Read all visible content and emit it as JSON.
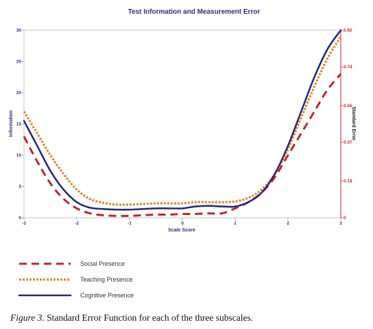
{
  "chart_data": {
    "type": "line",
    "title": "Test Information and Measurement Error",
    "xlabel": "Scale Score",
    "ylabel": "Information",
    "y2label": "Standard Error",
    "xlim": [
      -3,
      3
    ],
    "ylim": [
      0,
      30
    ],
    "y2lim": [
      0,
      0.92
    ],
    "x_ticks": [
      "-3",
      "-2",
      "-1",
      "0",
      "1",
      "2",
      "3"
    ],
    "y_ticks": [
      "0",
      "5",
      "10",
      "15",
      "20",
      "25",
      "30"
    ],
    "y2_ticks": [
      "0",
      "0.18",
      "0.37",
      "0.55",
      "0.74",
      "0.92"
    ],
    "series": [
      {
        "name": "Social Presence",
        "color": "#c0252b",
        "style": "dashed",
        "x": [
          -3,
          -2.75,
          -2.5,
          -2.25,
          -2,
          -1.75,
          -1.5,
          -1.25,
          -1,
          -0.75,
          -0.5,
          -0.25,
          0,
          0.25,
          0.5,
          0.75,
          1,
          1.25,
          1.5,
          1.75,
          2,
          2.25,
          2.5,
          2.75,
          3
        ],
        "values": [
          13,
          9,
          5.5,
          3,
          1.5,
          0.7,
          0.4,
          0.3,
          0.3,
          0.4,
          0.5,
          0.5,
          0.6,
          0.6,
          0.7,
          0.7,
          1.5,
          2.5,
          4,
          6.5,
          10,
          13.5,
          17,
          20.5,
          23
        ]
      },
      {
        "name": "Teaching Presence",
        "color": "#d98a2e",
        "style": "dotted",
        "x": [
          -3,
          -2.75,
          -2.5,
          -2.25,
          -2,
          -1.75,
          -1.5,
          -1.25,
          -1,
          -0.75,
          -0.5,
          -0.25,
          0,
          0.25,
          0.5,
          0.75,
          1,
          1.25,
          1.5,
          1.75,
          2,
          2.25,
          2.5,
          2.75,
          3
        ],
        "values": [
          17,
          13.5,
          10,
          7,
          4.5,
          3,
          2.4,
          2.1,
          2.1,
          2.2,
          2.3,
          2.3,
          2.3,
          2.5,
          2.5,
          2.5,
          2.6,
          3.2,
          4.5,
          7,
          11,
          16,
          21,
          25.5,
          29
        ]
      },
      {
        "name": "Cognitive Presence",
        "color": "#262c78",
        "style": "solid",
        "x": [
          -3,
          -2.75,
          -2.5,
          -2.25,
          -2,
          -1.75,
          -1.5,
          -1.25,
          -1,
          -0.75,
          -0.5,
          -0.25,
          0,
          0.25,
          0.5,
          0.75,
          1,
          1.25,
          1.5,
          1.75,
          2,
          2.25,
          2.5,
          2.75,
          3
        ],
        "values": [
          15.5,
          11.5,
          7.5,
          4.5,
          2.5,
          1.6,
          1.4,
          1.3,
          1.3,
          1.4,
          1.5,
          1.5,
          1.5,
          1.8,
          1.9,
          1.8,
          1.8,
          2.5,
          4,
          7,
          11.5,
          17,
          22.5,
          27,
          30
        ]
      }
    ],
    "legend": "bottom-left"
  },
  "caption": {
    "figure_label": "Figure 3.",
    "text": " Standard Error Function for  each of the three subscales."
  }
}
